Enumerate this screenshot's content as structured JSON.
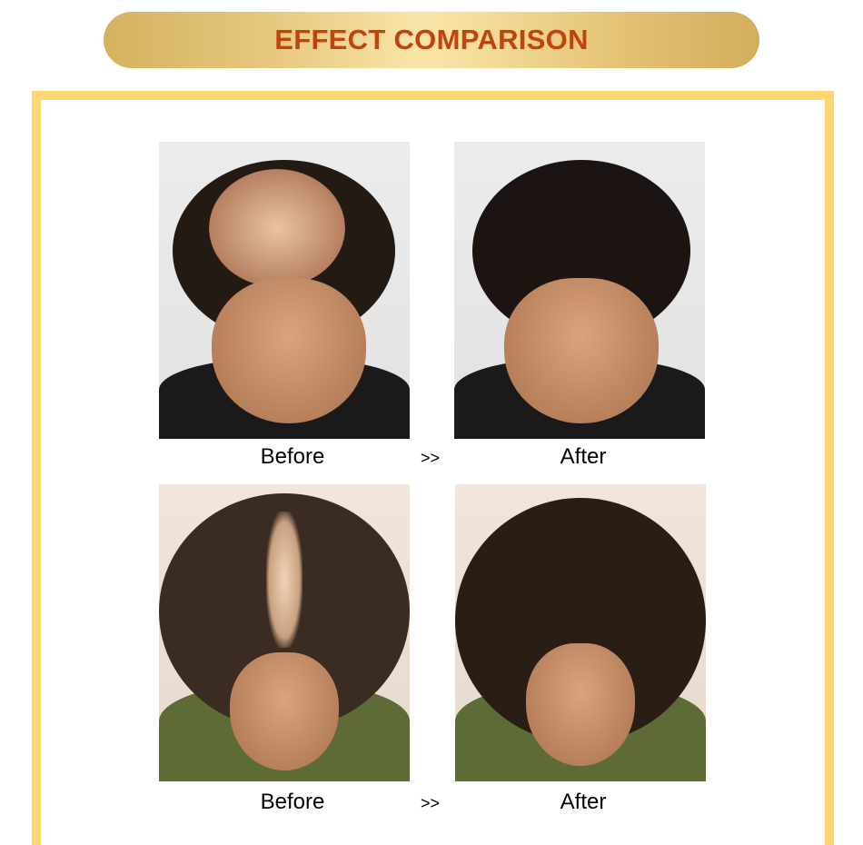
{
  "banner": {
    "title": "EFFECT COMPARISON"
  },
  "comparisons": [
    {
      "before_label": "Before",
      "separator": ">>",
      "after_label": "After"
    },
    {
      "before_label": "Before",
      "separator": ">>",
      "after_label": "After"
    }
  ],
  "colors": {
    "banner_text": "#c1440e",
    "frame": "#fdd673",
    "banner_gold": "#d4b25e"
  }
}
